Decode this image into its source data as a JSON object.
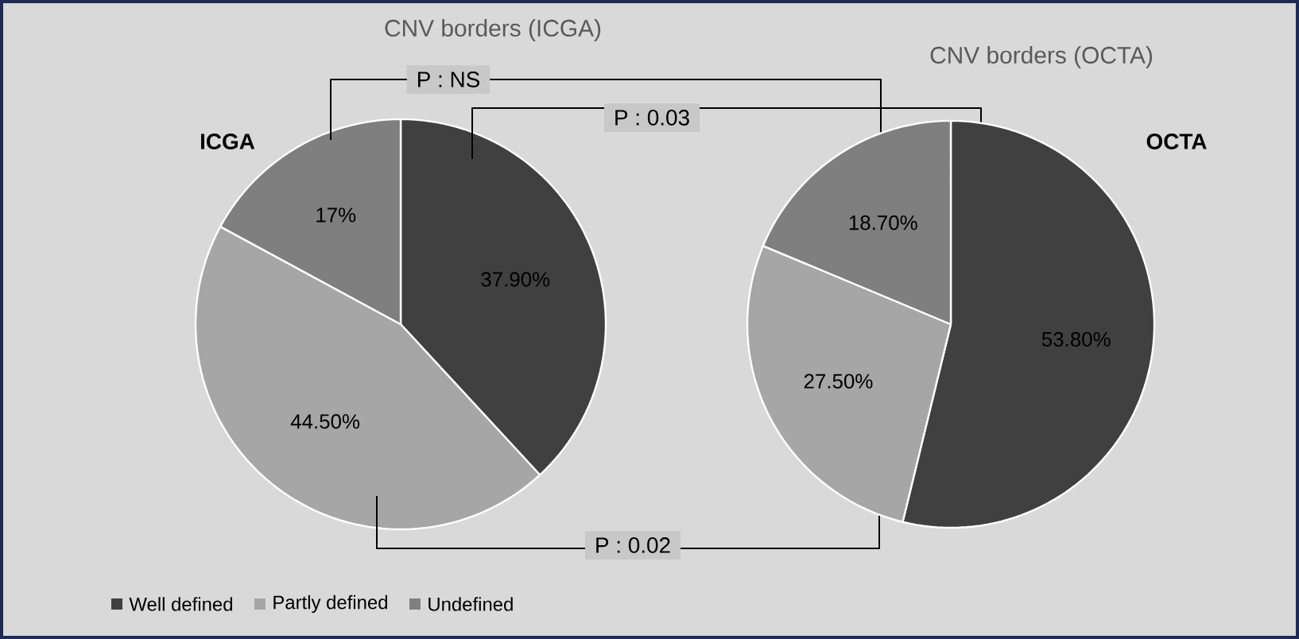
{
  "chart_data": [
    {
      "type": "pie",
      "title": "CNV borders (ICGA)",
      "categories": [
        "Well defined",
        "Partly defined",
        "Undefined"
      ],
      "values": [
        37.9,
        44.5,
        17
      ],
      "colors": [
        "#404040",
        "#a6a6a6",
        "#7f7f7f"
      ],
      "value_labels": [
        "37.90%",
        "44.50%",
        "17%"
      ],
      "legend": "bottom",
      "annotations": [
        "ICGA",
        "P : NS",
        "P : 0.03",
        "P : 0.02"
      ]
    },
    {
      "type": "pie",
      "title": "CNV borders (OCTA)",
      "categories": [
        null,
        null,
        null
      ],
      "values": [
        53.8,
        27.5,
        18.7
      ],
      "colors": [
        "#404040",
        "#a6a6a6",
        "#7f7f7f"
      ],
      "value_labels": [
        "53.80%",
        "27.50%",
        "18.70%"
      ],
      "annotations": [
        "OCTA"
      ]
    }
  ]
}
